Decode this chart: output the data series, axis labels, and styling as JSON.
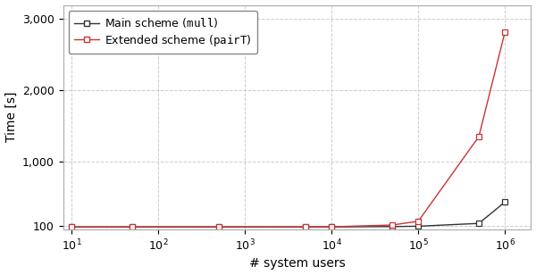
{
  "main_x": [
    10,
    50,
    500,
    5000,
    10000,
    50000,
    100000,
    500000,
    1000000
  ],
  "main_y": [
    80,
    80,
    80,
    80,
    81,
    85,
    90,
    130,
    430
  ],
  "extended_x": [
    10,
    50,
    500,
    5000,
    10000,
    50000,
    100000,
    500000,
    1000000
  ],
  "extended_y": [
    78,
    80,
    80,
    80,
    82,
    107,
    160,
    1350,
    2820
  ],
  "main_color": "#333333",
  "extended_color": "#cc3333",
  "xlabel": "# system users",
  "ylabel": "Time [s]",
  "legend_main": "Main scheme (mull)",
  "legend_extended": "Extended scheme (pairT)",
  "ylim_min": 50,
  "ylim_max": 3200,
  "yticks": [
    100,
    1000,
    2000,
    3000
  ],
  "grid_color": "#cccccc",
  "marker": "s",
  "marker_size": 4,
  "linewidth": 1.0
}
